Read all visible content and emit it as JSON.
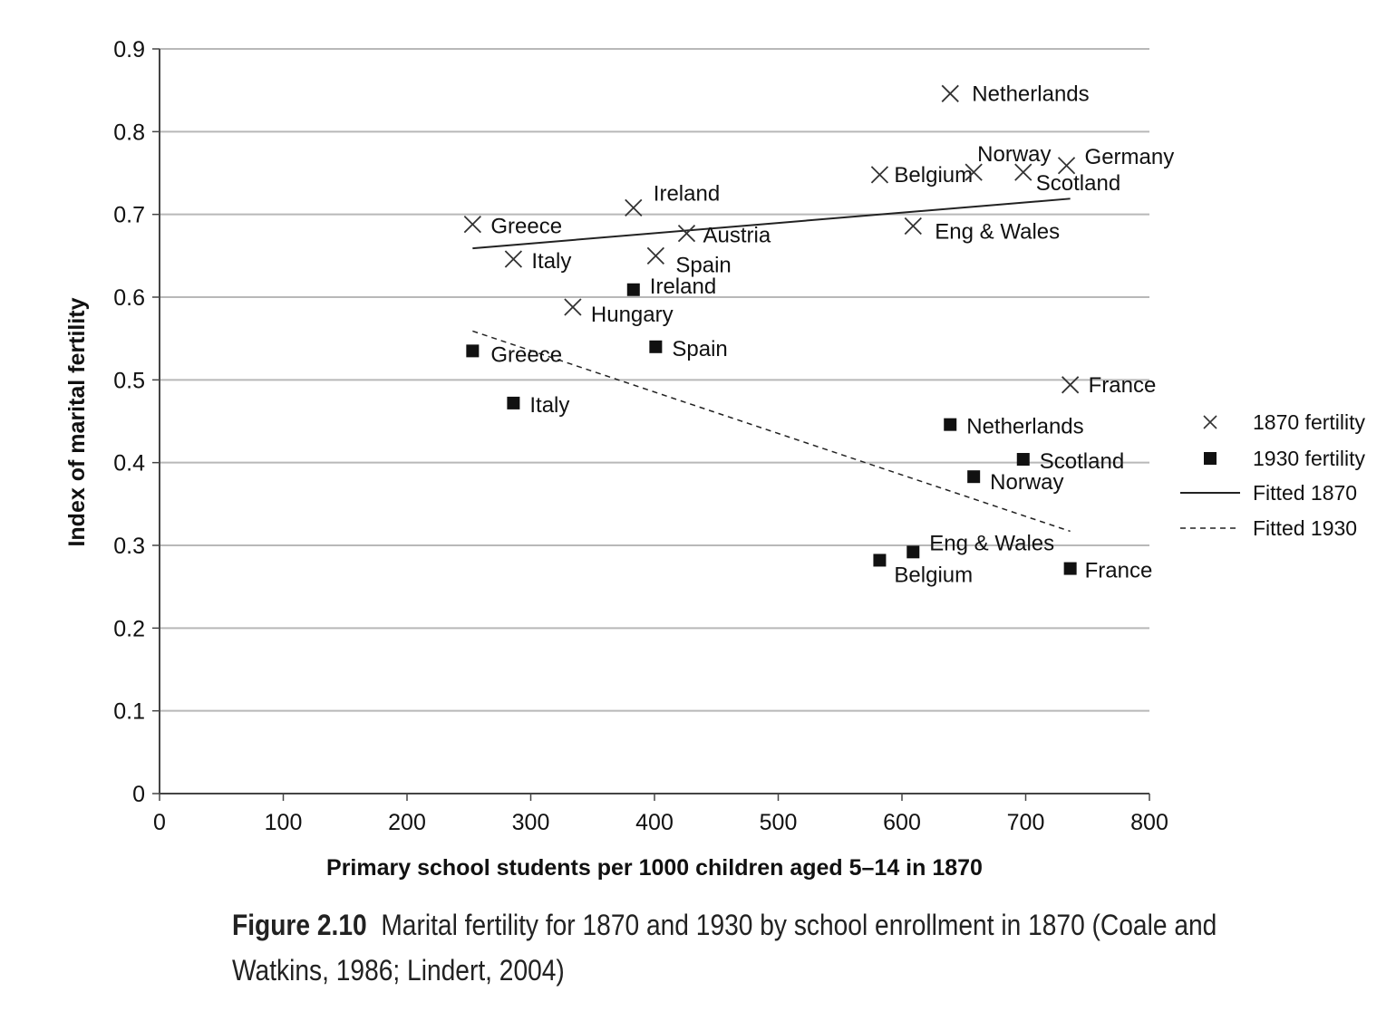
{
  "chart_data": {
    "type": "scatter",
    "title": "",
    "xlabel": "Primary school students per 1000 children aged 5–14 in 1870",
    "ylabel": "Index of marital fertility",
    "xlim": [
      0,
      800
    ],
    "ylim": [
      0,
      0.9
    ],
    "x_ticks": [
      "0",
      "100",
      "200",
      "300",
      "400",
      "500",
      "600",
      "700",
      "800"
    ],
    "y_ticks": [
      "0",
      "0.1",
      "0.2",
      "0.3",
      "0.4",
      "0.5",
      "0.6",
      "0.7",
      "0.8",
      "0.9"
    ],
    "grid": "horizontal",
    "legend_position": "right",
    "series": [
      {
        "name": "1870 fertility",
        "marker": "x",
        "points": [
          {
            "label": "Greece",
            "x": 253,
            "y": 0.688
          },
          {
            "label": "Italy",
            "x": 286,
            "y": 0.646
          },
          {
            "label": "Hungary",
            "x": 334,
            "y": 0.588
          },
          {
            "label": "Ireland",
            "x": 383,
            "y": 0.708
          },
          {
            "label": "Spain",
            "x": 401,
            "y": 0.65
          },
          {
            "label": "Austria",
            "x": 426,
            "y": 0.677
          },
          {
            "label": "Belgium",
            "x": 582,
            "y": 0.748
          },
          {
            "label": "Eng & Wales",
            "x": 609,
            "y": 0.686
          },
          {
            "label": "Netherlands",
            "x": 639,
            "y": 0.846
          },
          {
            "label": "Norway",
            "x": 658,
            "y": 0.751
          },
          {
            "label": "Scotland",
            "x": 698,
            "y": 0.751
          },
          {
            "label": "Germany",
            "x": 733,
            "y": 0.759
          },
          {
            "label": "France",
            "x": 736,
            "y": 0.494
          }
        ]
      },
      {
        "name": "1930 fertility",
        "marker": "square",
        "points": [
          {
            "label": "Greece",
            "x": 253,
            "y": 0.535
          },
          {
            "label": "Italy",
            "x": 286,
            "y": 0.472
          },
          {
            "label": "Ireland",
            "x": 383,
            "y": 0.609
          },
          {
            "label": "Spain",
            "x": 401,
            "y": 0.54
          },
          {
            "label": "Belgium",
            "x": 582,
            "y": 0.282
          },
          {
            "label": "Eng & Wales",
            "x": 609,
            "y": 0.292
          },
          {
            "label": "Netherlands",
            "x": 639,
            "y": 0.446
          },
          {
            "label": "Norway",
            "x": 658,
            "y": 0.383
          },
          {
            "label": "Scotland",
            "x": 698,
            "y": 0.404
          },
          {
            "label": "France",
            "x": 736,
            "y": 0.272
          }
        ]
      }
    ],
    "fitted_lines": [
      {
        "name": "Fitted 1870",
        "style": "solid",
        "x": [
          253,
          736
        ],
        "y": [
          0.659,
          0.719
        ]
      },
      {
        "name": "Fitted 1930",
        "style": "dashed",
        "x": [
          253,
          736
        ],
        "y": [
          0.559,
          0.317
        ]
      }
    ]
  },
  "caption": {
    "figure_number": "Figure 2.10",
    "text": "Marital fertility for 1870 and 1930 by school enrollment in 1870 (Coale and Watkins, 1986; Lindert, 2004)"
  }
}
